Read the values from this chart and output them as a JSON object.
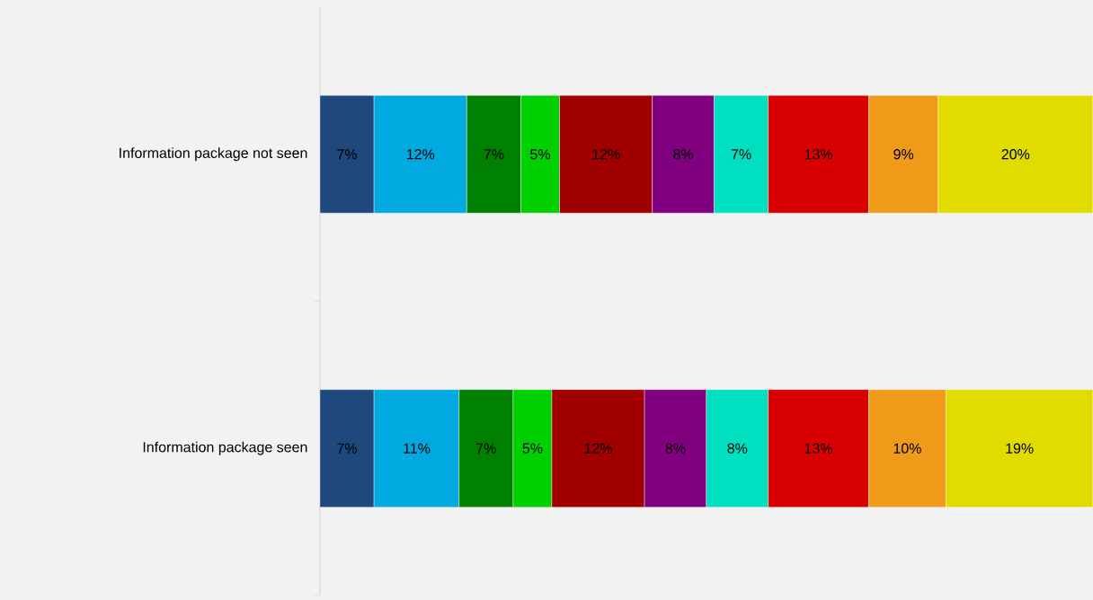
{
  "chart_data": {
    "type": "bar",
    "orientation": "horizontal",
    "stacked": true,
    "xlim": [
      0,
      100
    ],
    "categories": [
      "Information package not seen",
      "Information package seen"
    ],
    "series": [
      {
        "color": "#1f497d",
        "values": [
          7,
          7
        ],
        "value_labels": [
          "7%",
          "7%"
        ]
      },
      {
        "color": "#00a9e0",
        "values": [
          12,
          11
        ],
        "value_labels": [
          "12%",
          "11%"
        ]
      },
      {
        "color": "#008000",
        "values": [
          7,
          7
        ],
        "value_labels": [
          "7%",
          "7%"
        ]
      },
      {
        "color": "#00d000",
        "values": [
          5,
          5
        ],
        "value_labels": [
          "5%",
          "5%"
        ]
      },
      {
        "color": "#a00000",
        "values": [
          12,
          12
        ],
        "value_labels": [
          "12%",
          "12%"
        ]
      },
      {
        "color": "#800080",
        "values": [
          8,
          8
        ],
        "value_labels": [
          "8%",
          "8%"
        ]
      },
      {
        "color": "#00e0c0",
        "values": [
          7,
          8
        ],
        "value_labels": [
          "7%",
          "8%"
        ]
      },
      {
        "color": "#d80000",
        "values": [
          13,
          13
        ],
        "value_labels": [
          "13%",
          "13%"
        ]
      },
      {
        "color": "#f09a1a",
        "values": [
          9,
          10
        ],
        "value_labels": [
          "9%",
          "10%"
        ]
      },
      {
        "color": "#e0dc00",
        "values": [
          20,
          19
        ],
        "value_labels": [
          "20%",
          "19%"
        ]
      }
    ]
  }
}
